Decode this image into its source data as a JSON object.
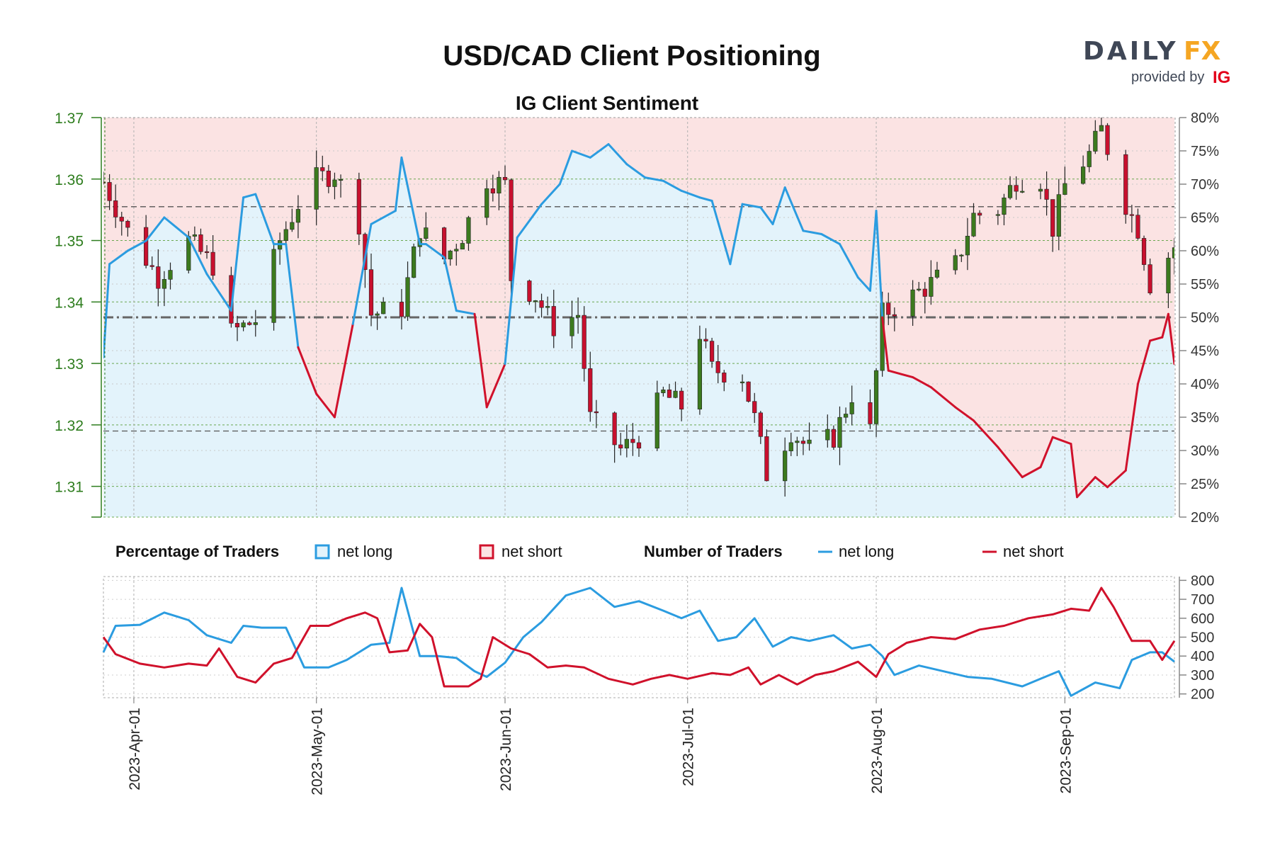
{
  "title": "USD/CAD Client Positioning",
  "subtitle": "IG Client Sentiment",
  "brand": {
    "daily": "DAILY",
    "fx": "FX",
    "provided": "provided by",
    "ig": "IG",
    "daily_color": "#3f4756",
    "fx_color": "#f5a623",
    "ig_color": "#e3001b"
  },
  "colors": {
    "long_line": "#2b9ce0",
    "short_line": "#d0112b",
    "long_fill": "#e3f3fb",
    "short_fill": "#fbe3e3",
    "candle_up": "#3c7a1e",
    "candle_down": "#c8102e",
    "price_axis": "#2e7d1e",
    "grid": "#b0b0b0"
  },
  "legend": {
    "percentage_title": "Percentage of Traders",
    "number_title": "Number of Traders",
    "net_long": "net long",
    "net_short": "net short"
  },
  "chart_data": [
    {
      "type": "candlestick_with_sentiment",
      "price_axis": {
        "ylim": [
          1.305,
          1.37
        ],
        "ticks": [
          1.31,
          1.32,
          1.33,
          1.34,
          1.35,
          1.36,
          1.37
        ],
        "tick_labels": [
          "1.31",
          "1.32",
          "1.33",
          "1.34",
          "1.35",
          "1.36",
          "1.37"
        ]
      },
      "percent_axis": {
        "ylim": [
          20,
          80
        ],
        "ticks": [
          20,
          25,
          30,
          35,
          40,
          45,
          50,
          55,
          60,
          65,
          70,
          75,
          80
        ],
        "tick_labels": [
          "20%",
          "25%",
          "30%",
          "35%",
          "40%",
          "45%",
          "50%",
          "55%",
          "60%",
          "65%",
          "70%",
          "75%",
          "80%"
        ]
      },
      "x_axis": {
        "start": "2023-03-27",
        "end": "2023-09-19",
        "ticks": [
          "2023-04-01",
          "2023-05-01",
          "2023-06-01",
          "2023-07-01",
          "2023-08-01",
          "2023-09-01"
        ]
      },
      "reference_levels": {
        "price_dashed": [
          1.3555,
          1.319
        ],
        "sentiment_midline": 50
      },
      "price_close": [
        [
          "2023-03-27",
          1.3595
        ],
        [
          "2023-03-31",
          1.3515
        ],
        [
          "2023-04-05",
          1.344
        ],
        [
          "2023-04-10",
          1.35
        ],
        [
          "2023-04-14",
          1.346
        ],
        [
          "2023-04-17",
          1.335
        ],
        [
          "2023-04-21",
          1.337
        ],
        [
          "2023-04-25",
          1.35
        ],
        [
          "2023-04-28",
          1.356
        ],
        [
          "2023-05-01",
          1.36
        ],
        [
          "2023-05-04",
          1.361
        ],
        [
          "2023-05-08",
          1.353
        ],
        [
          "2023-05-10",
          1.338
        ],
        [
          "2023-05-15",
          1.339
        ],
        [
          "2023-05-18",
          1.352
        ],
        [
          "2023-05-22",
          1.347
        ],
        [
          "2023-05-25",
          1.351
        ],
        [
          "2023-05-29",
          1.36
        ],
        [
          "2023-06-01",
          1.359
        ],
        [
          "2023-06-02",
          1.344
        ],
        [
          "2023-06-06",
          1.341
        ],
        [
          "2023-06-09",
          1.336
        ],
        [
          "2023-06-13",
          1.338
        ],
        [
          "2023-06-15",
          1.321
        ],
        [
          "2023-06-20",
          1.316
        ],
        [
          "2023-06-23",
          1.318
        ],
        [
          "2023-06-27",
          1.325
        ],
        [
          "2023-06-30",
          1.323
        ],
        [
          "2023-07-03",
          1.335
        ],
        [
          "2023-07-05",
          1.329
        ],
        [
          "2023-07-10",
          1.328
        ],
        [
          "2023-07-12",
          1.321
        ],
        [
          "2023-07-14",
          1.312
        ],
        [
          "2023-07-18",
          1.319
        ],
        [
          "2023-07-21",
          1.316
        ],
        [
          "2023-07-25",
          1.318
        ],
        [
          "2023-07-28",
          1.325
        ],
        [
          "2023-07-31",
          1.319
        ],
        [
          "2023-08-02",
          1.338
        ],
        [
          "2023-08-07",
          1.341
        ],
        [
          "2023-08-10",
          1.343
        ],
        [
          "2023-08-14",
          1.346
        ],
        [
          "2023-08-17",
          1.354
        ],
        [
          "2023-08-21",
          1.355
        ],
        [
          "2023-08-24",
          1.36
        ],
        [
          "2023-08-28",
          1.36
        ],
        [
          "2023-08-30",
          1.352
        ],
        [
          "2023-09-01",
          1.359
        ],
        [
          "2023-09-05",
          1.364
        ],
        [
          "2023-09-07",
          1.368
        ],
        [
          "2023-09-11",
          1.356
        ],
        [
          "2023-09-13",
          1.352
        ],
        [
          "2023-09-15",
          1.343
        ],
        [
          "2023-09-19",
          1.349
        ]
      ],
      "net_long_pct": [
        [
          "2023-03-27",
          44.0
        ],
        [
          "2023-03-28",
          58.0
        ],
        [
          "2023-03-31",
          60.0
        ],
        [
          "2023-04-03",
          61.5
        ],
        [
          "2023-04-06",
          65.0
        ],
        [
          "2023-04-10",
          62.0
        ],
        [
          "2023-04-13",
          56.5
        ],
        [
          "2023-04-17",
          51.0
        ],
        [
          "2023-04-19",
          68.0
        ],
        [
          "2023-04-21",
          68.5
        ],
        [
          "2023-04-24",
          61.0
        ],
        [
          "2023-04-26",
          61.0
        ],
        [
          "2023-04-28",
          45.5
        ],
        [
          "2023-05-01",
          38.5
        ],
        [
          "2023-05-04",
          35.0
        ],
        [
          "2023-05-07",
          49.0
        ],
        [
          "2023-05-10",
          64.0
        ],
        [
          "2023-05-14",
          66.0
        ],
        [
          "2023-05-15",
          74.0
        ],
        [
          "2023-05-18",
          61.0
        ],
        [
          "2023-05-19",
          61.0
        ],
        [
          "2023-05-22",
          59.0
        ],
        [
          "2023-05-24",
          51.0
        ],
        [
          "2023-05-27",
          50.5
        ],
        [
          "2023-05-29",
          36.5
        ],
        [
          "2023-06-01",
          43.0
        ],
        [
          "2023-06-03",
          62.0
        ],
        [
          "2023-06-07",
          67.0
        ],
        [
          "2023-06-10",
          70.0
        ],
        [
          "2023-06-12",
          75.0
        ],
        [
          "2023-06-15",
          74.0
        ],
        [
          "2023-06-18",
          76.0
        ],
        [
          "2023-06-21",
          73.0
        ],
        [
          "2023-06-24",
          71.0
        ],
        [
          "2023-06-27",
          70.5
        ],
        [
          "2023-06-30",
          69.0
        ],
        [
          "2023-07-03",
          68.0
        ],
        [
          "2023-07-05",
          67.5
        ],
        [
          "2023-07-08",
          58.0
        ],
        [
          "2023-07-10",
          67.0
        ],
        [
          "2023-07-13",
          66.5
        ],
        [
          "2023-07-15",
          64.0
        ],
        [
          "2023-07-17",
          69.5
        ],
        [
          "2023-07-20",
          63.0
        ],
        [
          "2023-07-23",
          62.5
        ],
        [
          "2023-07-26",
          61.0
        ],
        [
          "2023-07-29",
          56.0
        ],
        [
          "2023-07-31",
          54.0
        ],
        [
          "2023-08-01",
          66.0
        ],
        [
          "2023-08-02",
          50.0
        ],
        [
          "2023-08-03",
          42.0
        ],
        [
          "2023-08-07",
          41.0
        ],
        [
          "2023-08-10",
          39.5
        ],
        [
          "2023-08-14",
          36.5
        ],
        [
          "2023-08-17",
          34.5
        ],
        [
          "2023-08-21",
          30.5
        ],
        [
          "2023-08-25",
          26.0
        ],
        [
          "2023-08-28",
          27.5
        ],
        [
          "2023-08-30",
          32.0
        ],
        [
          "2023-09-02",
          31.0
        ],
        [
          "2023-09-03",
          23.0
        ],
        [
          "2023-09-06",
          26.0
        ],
        [
          "2023-09-08",
          24.5
        ],
        [
          "2023-09-11",
          27.0
        ],
        [
          "2023-09-13",
          40.0
        ],
        [
          "2023-09-15",
          46.5
        ],
        [
          "2023-09-17",
          47.0
        ],
        [
          "2023-09-18",
          50.5
        ],
        [
          "2023-09-19",
          43.0
        ]
      ]
    },
    {
      "type": "line",
      "y_axis": {
        "ylim": [
          180,
          820
        ],
        "ticks": [
          200,
          300,
          400,
          500,
          600,
          700,
          800
        ],
        "tick_labels": [
          "200",
          "300",
          "400",
          "500",
          "600",
          "700",
          "800"
        ]
      },
      "x_axis": {
        "start": "2023-03-27",
        "end": "2023-09-19",
        "tick_labels": [
          "2023-Apr-01",
          "2023-May-01",
          "2023-Jun-01",
          "2023-Jul-01",
          "2023-Aug-01",
          "2023-Sep-01"
        ]
      },
      "series": [
        {
          "name": "net long",
          "values": [
            [
              "2023-03-27",
              420
            ],
            [
              "2023-03-29",
              560
            ],
            [
              "2023-04-02",
              565
            ],
            [
              "2023-04-06",
              630
            ],
            [
              "2023-04-10",
              590
            ],
            [
              "2023-04-13",
              510
            ],
            [
              "2023-04-17",
              470
            ],
            [
              "2023-04-19",
              560
            ],
            [
              "2023-04-22",
              550
            ],
            [
              "2023-04-26",
              550
            ],
            [
              "2023-04-29",
              340
            ],
            [
              "2023-05-03",
              340
            ],
            [
              "2023-05-06",
              380
            ],
            [
              "2023-05-10",
              460
            ],
            [
              "2023-05-13",
              470
            ],
            [
              "2023-05-15",
              760
            ],
            [
              "2023-05-18",
              400
            ],
            [
              "2023-05-21",
              400
            ],
            [
              "2023-05-24",
              390
            ],
            [
              "2023-05-27",
              320
            ],
            [
              "2023-05-29",
              290
            ],
            [
              "2023-06-01",
              365
            ],
            [
              "2023-06-04",
              500
            ],
            [
              "2023-06-07",
              580
            ],
            [
              "2023-06-11",
              720
            ],
            [
              "2023-06-15",
              760
            ],
            [
              "2023-06-19",
              660
            ],
            [
              "2023-06-23",
              690
            ],
            [
              "2023-06-27",
              640
            ],
            [
              "2023-06-30",
              600
            ],
            [
              "2023-07-03",
              640
            ],
            [
              "2023-07-06",
              480
            ],
            [
              "2023-07-09",
              500
            ],
            [
              "2023-07-12",
              600
            ],
            [
              "2023-07-15",
              450
            ],
            [
              "2023-07-18",
              500
            ],
            [
              "2023-07-21",
              480
            ],
            [
              "2023-07-25",
              510
            ],
            [
              "2023-07-28",
              440
            ],
            [
              "2023-07-31",
              460
            ],
            [
              "2023-08-02",
              400
            ],
            [
              "2023-08-04",
              300
            ],
            [
              "2023-08-08",
              350
            ],
            [
              "2023-08-12",
              320
            ],
            [
              "2023-08-16",
              290
            ],
            [
              "2023-08-20",
              280
            ],
            [
              "2023-08-25",
              240
            ],
            [
              "2023-08-28",
              280
            ],
            [
              "2023-08-31",
              320
            ],
            [
              "2023-09-02",
              190
            ],
            [
              "2023-09-06",
              260
            ],
            [
              "2023-09-10",
              230
            ],
            [
              "2023-09-12",
              380
            ],
            [
              "2023-09-15",
              420
            ],
            [
              "2023-09-17",
              420
            ],
            [
              "2023-09-19",
              370
            ]
          ]
        },
        {
          "name": "net short",
          "values": [
            [
              "2023-03-27",
              500
            ],
            [
              "2023-03-29",
              410
            ],
            [
              "2023-04-02",
              360
            ],
            [
              "2023-04-06",
              340
            ],
            [
              "2023-04-10",
              360
            ],
            [
              "2023-04-13",
              350
            ],
            [
              "2023-04-15",
              440
            ],
            [
              "2023-04-18",
              290
            ],
            [
              "2023-04-21",
              260
            ],
            [
              "2023-04-24",
              360
            ],
            [
              "2023-04-27",
              390
            ],
            [
              "2023-04-30",
              560
            ],
            [
              "2023-05-03",
              560
            ],
            [
              "2023-05-06",
              600
            ],
            [
              "2023-05-09",
              630
            ],
            [
              "2023-05-11",
              600
            ],
            [
              "2023-05-13",
              420
            ],
            [
              "2023-05-16",
              430
            ],
            [
              "2023-05-18",
              570
            ],
            [
              "2023-05-20",
              500
            ],
            [
              "2023-05-22",
              240
            ],
            [
              "2023-05-26",
              240
            ],
            [
              "2023-05-28",
              280
            ],
            [
              "2023-05-30",
              500
            ],
            [
              "2023-06-02",
              440
            ],
            [
              "2023-06-05",
              410
            ],
            [
              "2023-06-08",
              340
            ],
            [
              "2023-06-11",
              350
            ],
            [
              "2023-06-14",
              340
            ],
            [
              "2023-06-18",
              280
            ],
            [
              "2023-06-22",
              250
            ],
            [
              "2023-06-25",
              280
            ],
            [
              "2023-06-28",
              300
            ],
            [
              "2023-07-01",
              280
            ],
            [
              "2023-07-05",
              310
            ],
            [
              "2023-07-08",
              300
            ],
            [
              "2023-07-11",
              340
            ],
            [
              "2023-07-13",
              250
            ],
            [
              "2023-07-16",
              300
            ],
            [
              "2023-07-19",
              250
            ],
            [
              "2023-07-22",
              300
            ],
            [
              "2023-07-25",
              320
            ],
            [
              "2023-07-29",
              370
            ],
            [
              "2023-08-01",
              290
            ],
            [
              "2023-08-03",
              410
            ],
            [
              "2023-08-06",
              470
            ],
            [
              "2023-08-10",
              500
            ],
            [
              "2023-08-14",
              490
            ],
            [
              "2023-08-18",
              540
            ],
            [
              "2023-08-22",
              560
            ],
            [
              "2023-08-26",
              600
            ],
            [
              "2023-08-30",
              620
            ],
            [
              "2023-09-02",
              650
            ],
            [
              "2023-09-05",
              640
            ],
            [
              "2023-09-07",
              760
            ],
            [
              "2023-09-09",
              660
            ],
            [
              "2023-09-12",
              480
            ],
            [
              "2023-09-15",
              480
            ],
            [
              "2023-09-17",
              380
            ],
            [
              "2023-09-19",
              480
            ]
          ]
        }
      ]
    }
  ]
}
